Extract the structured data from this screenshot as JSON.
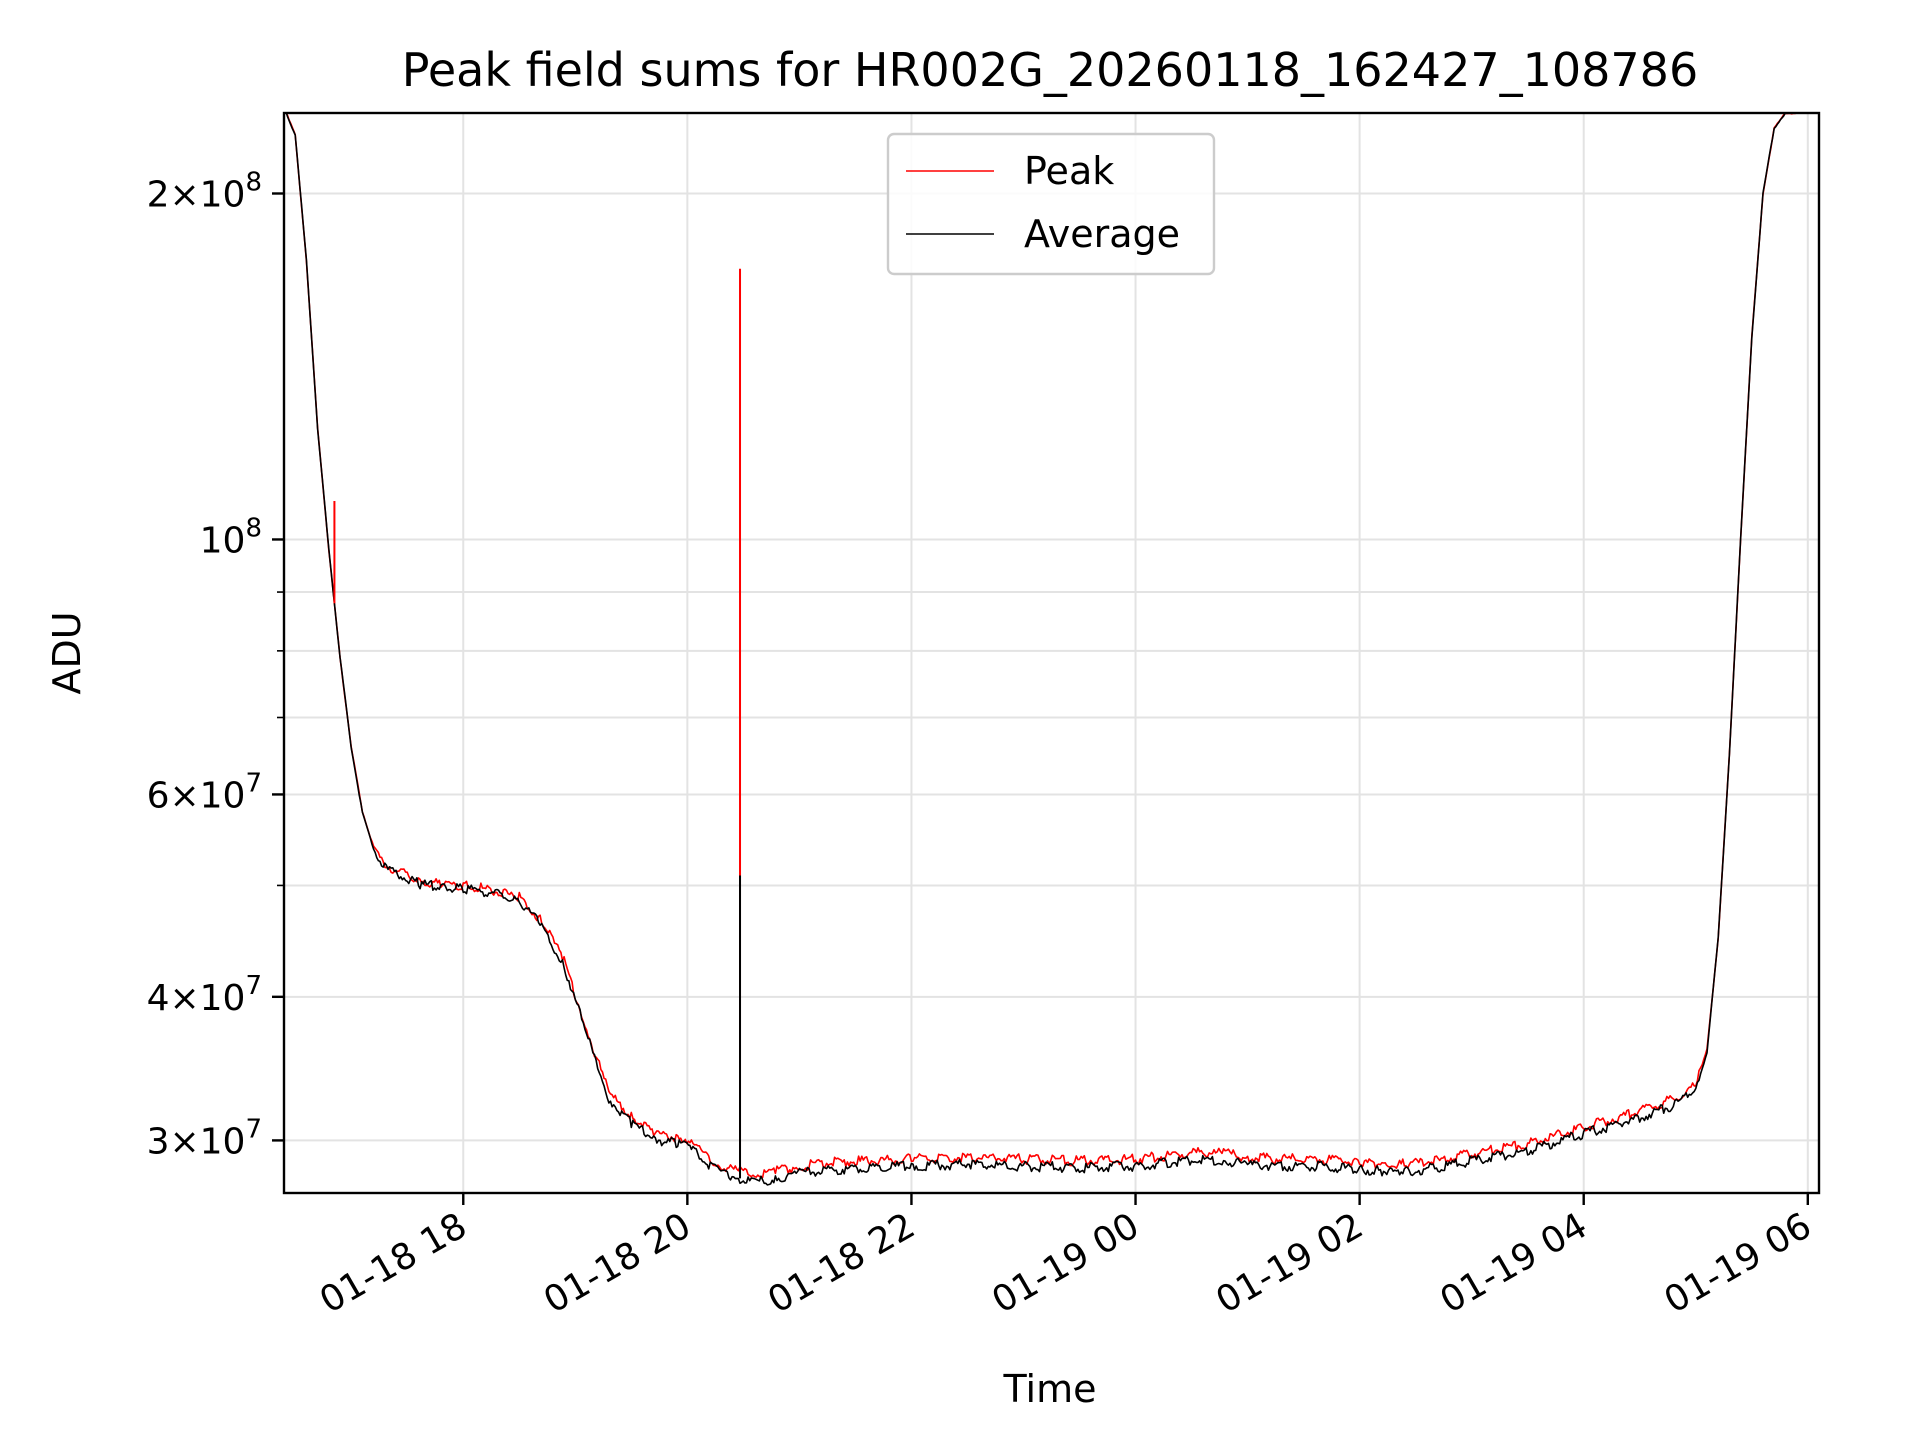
{
  "chart_data": {
    "type": "line",
    "title": "Peak field sums for HR002G_20260118_162427_108786",
    "xlabel": "Time",
    "ylabel": "ADU",
    "yscale": "log",
    "ylim": [
      27000000,
      235000000
    ],
    "xlim_hours": [
      16.4,
      30.1
    ],
    "grid": true,
    "legend_location": "upper center",
    "x_ticks": [
      {
        "hour": 18,
        "label": "01-18 18"
      },
      {
        "hour": 20,
        "label": "01-18 20"
      },
      {
        "hour": 22,
        "label": "01-18 22"
      },
      {
        "hour": 24,
        "label": "01-19 00"
      },
      {
        "hour": 26,
        "label": "01-19 02"
      },
      {
        "hour": 28,
        "label": "01-19 04"
      },
      {
        "hour": 30,
        "label": "01-19 06"
      }
    ],
    "y_ticks": [
      {
        "value": 30000000,
        "mantissa": "3",
        "exponent": "7"
      },
      {
        "value": 40000000,
        "mantissa": "4",
        "exponent": "7"
      },
      {
        "value": 60000000,
        "mantissa": "6",
        "exponent": "7"
      },
      {
        "value": 100000000,
        "mantissa": "",
        "exponent": "8"
      },
      {
        "value": 200000000,
        "mantissa": "2",
        "exponent": "8"
      }
    ],
    "y_minor_ticks": [
      50000000,
      70000000,
      80000000,
      90000000
    ],
    "series": [
      {
        "name": "Peak",
        "color": "#ff0000",
        "hours": [
          16.42,
          16.5,
          16.6,
          16.7,
          16.8,
          16.85,
          16.9,
          17.0,
          17.1,
          17.2,
          17.3,
          17.4,
          17.6,
          17.8,
          18.0,
          18.3,
          18.5,
          18.7,
          18.9,
          19.1,
          19.3,
          19.5,
          19.7,
          19.9,
          20.05,
          20.15,
          20.3,
          20.47,
          20.6,
          20.8,
          21.0,
          21.3,
          21.6,
          22.0,
          22.5,
          23.0,
          23.5,
          24.0,
          24.3,
          24.6,
          24.8,
          25.0,
          25.3,
          25.6,
          26.0,
          26.2,
          26.4,
          26.7,
          27.0,
          27.5,
          28.0,
          28.5,
          28.8,
          29.0,
          29.1,
          29.2,
          29.3,
          29.4,
          29.5,
          29.6,
          29.7,
          29.8,
          29.9
        ],
        "values": [
          235000000,
          225000000,
          175000000,
          125000000,
          98000000,
          88000000,
          79000000,
          66000000,
          58000000,
          54000000,
          52000000,
          51500000,
          50500000,
          50200000,
          50000000,
          49500000,
          48800000,
          46500000,
          43000000,
          37500000,
          33000000,
          31500000,
          30500000,
          30200000,
          30000000,
          29200000,
          28500000,
          28200000,
          28000000,
          28200000,
          28500000,
          28700000,
          28800000,
          28900000,
          29000000,
          28900000,
          28800000,
          28900000,
          29100000,
          29300000,
          29200000,
          29000000,
          28900000,
          28900000,
          28700000,
          28600000,
          28600000,
          28800000,
          29200000,
          29800000,
          30800000,
          31800000,
          32600000,
          33500000,
          36000000,
          45000000,
          65000000,
          100000000,
          150000000,
          200000000,
          228000000,
          235000000,
          235000000
        ],
        "spikes": [
          {
            "hour": 16.85,
            "value": 108000000
          },
          {
            "hour": 20.47,
            "value": 172000000
          }
        ]
      },
      {
        "name": "Average",
        "color": "#000000",
        "hours": [
          16.42,
          16.5,
          16.6,
          16.7,
          16.8,
          16.85,
          16.9,
          17.0,
          17.1,
          17.2,
          17.3,
          17.4,
          17.6,
          17.8,
          18.0,
          18.3,
          18.5,
          18.7,
          18.9,
          19.1,
          19.3,
          19.5,
          19.7,
          19.9,
          20.05,
          20.15,
          20.3,
          20.47,
          20.6,
          20.8,
          21.0,
          21.3,
          21.6,
          22.0,
          22.5,
          23.0,
          23.5,
          24.0,
          24.3,
          24.6,
          24.8,
          25.0,
          25.3,
          25.6,
          26.0,
          26.2,
          26.4,
          26.7,
          27.0,
          27.5,
          28.0,
          28.5,
          28.8,
          29.0,
          29.1,
          29.2,
          29.3,
          29.4,
          29.5,
          29.6,
          29.7,
          29.8,
          29.9
        ],
        "values": [
          235000000,
          225000000,
          175000000,
          125000000,
          98000000,
          88000000,
          79000000,
          66000000,
          57800000,
          53800000,
          51800000,
          51200000,
          50200000,
          49900000,
          49700000,
          49200000,
          48500000,
          46200000,
          42600000,
          37100000,
          32600000,
          31100000,
          30100000,
          29800000,
          29600000,
          28800000,
          28100000,
          27800000,
          27600000,
          27800000,
          28100000,
          28300000,
          28400000,
          28500000,
          28600000,
          28500000,
          28400000,
          28500000,
          28700000,
          28900000,
          28800000,
          28600000,
          28500000,
          28500000,
          28300000,
          28200000,
          28200000,
          28400000,
          28800000,
          29400000,
          30400000,
          31400000,
          32200000,
          33200000,
          35800000,
          45000000,
          65000000,
          100000000,
          150000000,
          200000000,
          228000000,
          235000000,
          235000000
        ],
        "spikes": [
          {
            "hour": 20.47,
            "value": 51000000
          }
        ]
      }
    ]
  }
}
